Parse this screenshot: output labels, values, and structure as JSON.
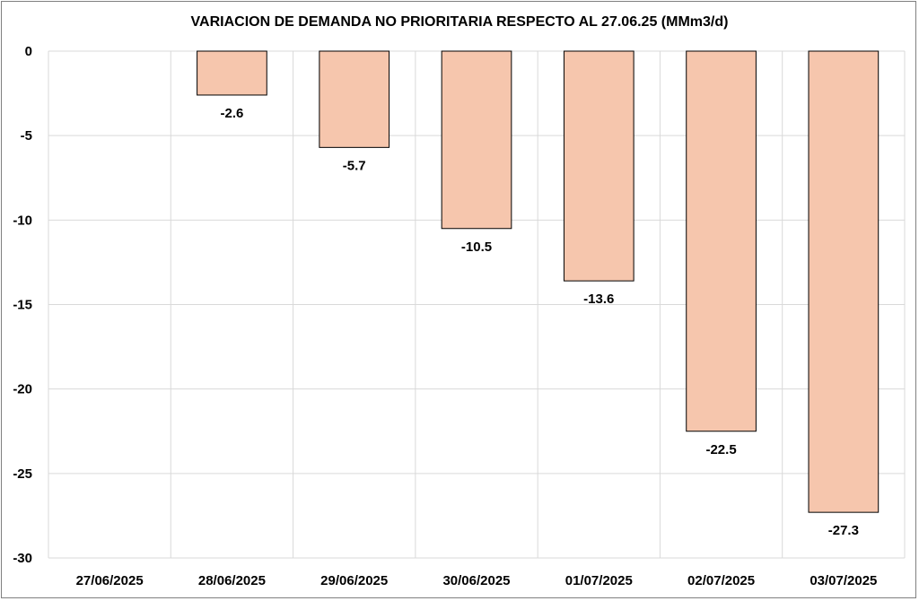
{
  "chart_data": {
    "type": "bar",
    "title": "VARIACION DE DEMANDA NO PRIORITARIA RESPECTO AL 27.06.25 (MMm3/d)",
    "categories": [
      "27/06/2025",
      "28/06/2025",
      "29/06/2025",
      "30/06/2025",
      "01/07/2025",
      "02/07/2025",
      "03/07/2025"
    ],
    "values": [
      0,
      -2.6,
      -5.7,
      -10.5,
      -13.6,
      -22.5,
      -27.3
    ],
    "data_labels": [
      "",
      "-2.6",
      "-5.7",
      "-10.5",
      "-13.6",
      "-22.5",
      "-27.3"
    ],
    "ylim": [
      -30,
      0
    ],
    "yticks": [
      0,
      -5,
      -10,
      -15,
      -20,
      -25,
      -30
    ],
    "ytick_labels": [
      "0",
      "-5",
      "-10",
      "-15",
      "-20",
      "-25",
      "-30"
    ],
    "xlabel": "",
    "ylabel": "",
    "grid": true,
    "bar_color": "#F6C6AD",
    "bar_edge_color": "#000000"
  }
}
